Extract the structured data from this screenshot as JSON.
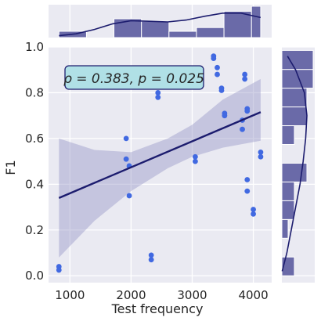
{
  "chart_data": {
    "type": "scatter",
    "title": "",
    "xlabel": "Test frequency",
    "ylabel": "F1",
    "xlim": [
      650,
      4300
    ],
    "ylim": [
      -0.03,
      1.0
    ],
    "x_ticks": [
      1000,
      2000,
      3000,
      4000
    ],
    "y_ticks": [
      0.0,
      0.2,
      0.4,
      0.6,
      0.8,
      1.0
    ],
    "x_tick_labels": [
      "1000",
      "2000",
      "3000",
      "4000"
    ],
    "y_tick_labels": [
      "0.0",
      "0.2",
      "0.4",
      "0.6",
      "0.8",
      "1.0"
    ],
    "annotation": "ρ = 0.383, p = 0.025",
    "grid": true,
    "points": [
      {
        "x": 820,
        "y": 0.04
      },
      {
        "x": 820,
        "y": 0.025
      },
      {
        "x": 1920,
        "y": 0.6
      },
      {
        "x": 1920,
        "y": 0.51
      },
      {
        "x": 1970,
        "y": 0.48
      },
      {
        "x": 1970,
        "y": 0.35
      },
      {
        "x": 2330,
        "y": 0.09
      },
      {
        "x": 2330,
        "y": 0.07
      },
      {
        "x": 2440,
        "y": 0.8
      },
      {
        "x": 2440,
        "y": 0.78
      },
      {
        "x": 3050,
        "y": 0.52
      },
      {
        "x": 3050,
        "y": 0.5
      },
      {
        "x": 3350,
        "y": 0.96
      },
      {
        "x": 3350,
        "y": 0.95
      },
      {
        "x": 3410,
        "y": 0.91
      },
      {
        "x": 3410,
        "y": 0.88
      },
      {
        "x": 3480,
        "y": 0.82
      },
      {
        "x": 3480,
        "y": 0.81
      },
      {
        "x": 3530,
        "y": 0.71
      },
      {
        "x": 3530,
        "y": 0.7
      },
      {
        "x": 3820,
        "y": 0.68
      },
      {
        "x": 3820,
        "y": 0.64
      },
      {
        "x": 3860,
        "y": 0.88
      },
      {
        "x": 3860,
        "y": 0.86
      },
      {
        "x": 3900,
        "y": 0.73
      },
      {
        "x": 3900,
        "y": 0.72
      },
      {
        "x": 3900,
        "y": 0.42
      },
      {
        "x": 3900,
        "y": 0.37
      },
      {
        "x": 4000,
        "y": 0.29
      },
      {
        "x": 4000,
        "y": 0.27
      },
      {
        "x": 4120,
        "y": 0.54
      },
      {
        "x": 4120,
        "y": 0.52
      }
    ],
    "regression": {
      "x": [
        820,
        4120
      ],
      "y": [
        0.34,
        0.715
      ]
    },
    "confidence_band": {
      "x": [
        820,
        1400,
        2000,
        2600,
        3000,
        3500,
        4120
      ],
      "lower": [
        0.08,
        0.24,
        0.37,
        0.47,
        0.52,
        0.56,
        0.59
      ],
      "upper": [
        0.6,
        0.55,
        0.54,
        0.6,
        0.66,
        0.77,
        0.86
      ]
    },
    "marginal_x": {
      "bin_edges": [
        820,
        1270,
        1720,
        2170,
        2620,
        3070,
        3520,
        3970,
        4120
      ],
      "counts": [
        1,
        0,
        3,
        2.6,
        1,
        1.6,
        4.2,
        5
      ],
      "kde_x": [
        820,
        1100,
        1400,
        1700,
        2000,
        2300,
        2600,
        2900,
        3200,
        3500,
        3800,
        4120
      ],
      "kde_y": [
        0.3,
        0.6,
        1.3,
        2.2,
        2.7,
        2.6,
        2.5,
        2.8,
        3.4,
        3.9,
        3.9,
        3.2
      ]
    },
    "marginal_y": {
      "bin_edges": [
        0.0,
        0.082,
        0.164,
        0.246,
        0.328,
        0.41,
        0.492,
        0.574,
        0.656,
        0.738,
        0.82,
        0.902,
        0.985
      ],
      "counts": [
        2,
        0,
        1,
        2,
        2,
        4,
        0,
        2,
        4,
        4,
        5,
        5
      ],
      "kde_y": [
        0.02,
        0.1,
        0.2,
        0.3,
        0.4,
        0.5,
        0.6,
        0.7,
        0.8,
        0.9,
        0.96
      ],
      "kde_x": [
        0.05,
        0.8,
        1.5,
        2.2,
        2.9,
        3.4,
        3.8,
        4.0,
        3.6,
        2.2,
        0.9
      ]
    },
    "colors": {
      "background": "#eaeaf2",
      "grid": "#ffffff",
      "points": "#4169e1",
      "line": "#1c1c6e",
      "band": "#9a9ac8",
      "hist": "#6a6aa8",
      "hist_edge": "#ffffff",
      "annotation_fill": "#b0e0e6",
      "annotation_edge": "#1c1c6e"
    }
  }
}
